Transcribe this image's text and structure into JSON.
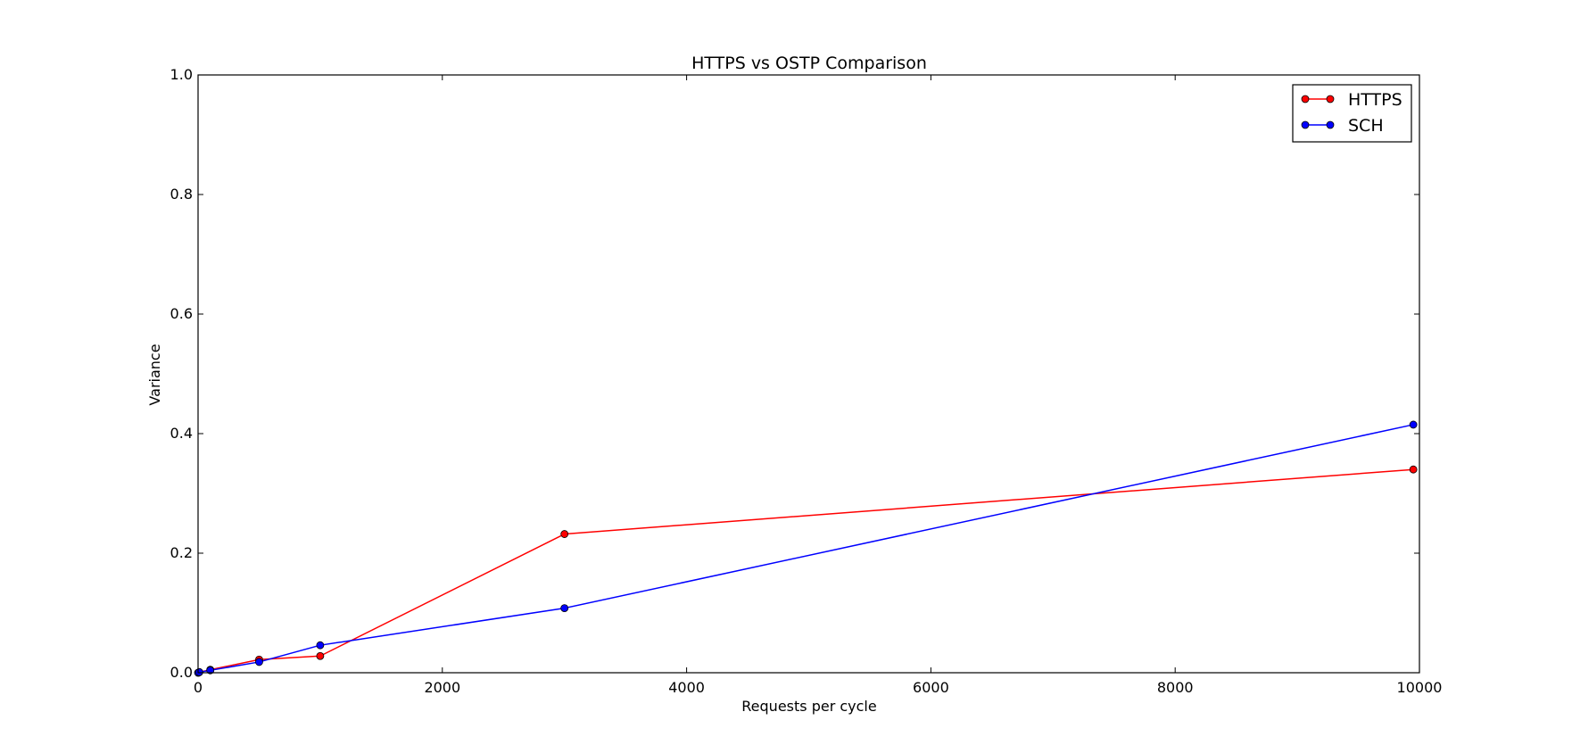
{
  "chart_data": {
    "type": "line",
    "title": "HTTPS vs OSTP Comparison",
    "xlabel": "Requests per cycle",
    "ylabel": "Variance",
    "xlim": [
      0,
      10000
    ],
    "ylim": [
      0,
      1.0
    ],
    "xticks": [
      0,
      2000,
      4000,
      6000,
      8000,
      10000
    ],
    "xtick_labels": [
      "0",
      "2000",
      "4000",
      "6000",
      "8000",
      "10000"
    ],
    "yticks": [
      0.0,
      0.2,
      0.4,
      0.6,
      0.8,
      1.0
    ],
    "ytick_labels": [
      "0.0",
      "0.2",
      "0.4",
      "0.6",
      "0.8",
      "1.0"
    ],
    "grid": false,
    "legend_position": "top-right",
    "series": [
      {
        "name": "HTTPS",
        "color": "#ff0000",
        "marker": "circle",
        "x": [
          1,
          10,
          100,
          500,
          1000,
          3000,
          9950
        ],
        "y": [
          0.0,
          0.001,
          0.005,
          0.022,
          0.028,
          0.232,
          0.34
        ]
      },
      {
        "name": "SCH",
        "color": "#0000ff",
        "marker": "circle",
        "x": [
          1,
          10,
          100,
          500,
          1000,
          3000,
          9950
        ],
        "y": [
          0.0,
          0.001,
          0.004,
          0.018,
          0.046,
          0.108,
          0.415
        ]
      }
    ]
  }
}
